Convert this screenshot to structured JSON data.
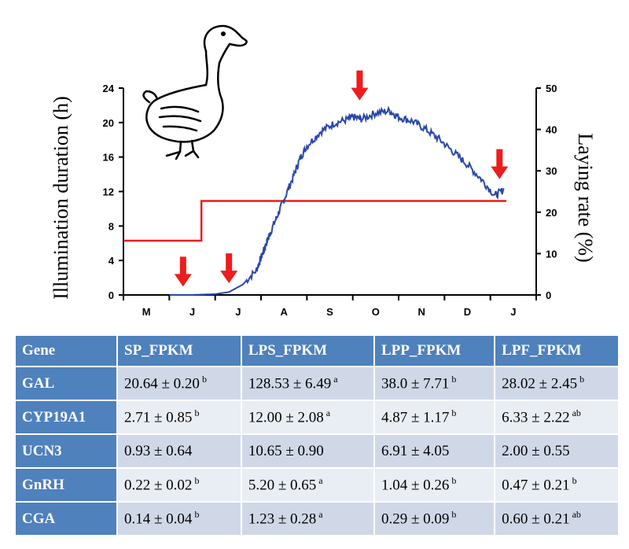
{
  "chart_data": {
    "type": "line",
    "ylabel": "Illumination duration (h)",
    "y2label": "Laying rate (%)",
    "categories": [
      "M",
      "J",
      "J",
      "A",
      "S",
      "O",
      "N",
      "D",
      "J"
    ],
    "ylim": [
      0,
      24
    ],
    "y_ticks": [
      0,
      4,
      8,
      12,
      16,
      20,
      24
    ],
    "y2lim": [
      0,
      50
    ],
    "y2_ticks": [
      0,
      10,
      20,
      30,
      40,
      50
    ],
    "colors": {
      "illumination": "#ee1c1c",
      "laying": "#2a47a8",
      "arrow": "#ee1c1c"
    },
    "series": [
      {
        "axis": "left",
        "step": true,
        "x": [
          0,
          1.7,
          1.7,
          8.35
        ],
        "values": [
          6.3,
          6.3,
          10.9,
          10.9
        ]
      },
      {
        "axis": "right",
        "x": [
          1,
          1.5,
          2,
          2.3,
          2.6,
          2.9,
          3,
          3.1,
          3.2,
          3.35,
          3.5,
          3.7,
          3.85,
          4,
          4.3,
          4.6,
          4.9,
          5,
          5.2,
          5.5,
          5.8,
          6,
          6.3,
          6.6,
          6.9,
          7.2,
          7.5,
          7.8,
          8.1,
          8.3
        ],
        "values": [
          0,
          0,
          0.2,
          0.7,
          2.5,
          6,
          9,
          12,
          15,
          19,
          23,
          28.5,
          33,
          36,
          39.5,
          41.5,
          42.5,
          43,
          42.5,
          44,
          44.5,
          43,
          42,
          40,
          37.5,
          34.5,
          31.5,
          28,
          24,
          25.5
        ]
      }
    ],
    "arrows_x": [
      1.3,
      2.3,
      5.15,
      8.2
    ],
    "arrows_y2": [
      0.5,
      1.3,
      45.5,
      26.5
    ]
  },
  "table": {
    "headers": [
      "Gene",
      "SP_FPKM",
      "LPS_FPKM",
      "LPP_FPKM",
      "LPF_FPKM"
    ],
    "rows": [
      {
        "gene": "GAL",
        "cells": [
          {
            "v": "20.64 ± 0.20",
            "s": "b"
          },
          {
            "v": "128.53 ± 6.49",
            "s": "a"
          },
          {
            "v": "38.0 ± 7.71",
            "s": "b"
          },
          {
            "v": "28.02 ± 2.45",
            "s": "b"
          }
        ]
      },
      {
        "gene": "CYP19A1",
        "cells": [
          {
            "v": "2.71 ± 0.85",
            "s": "b"
          },
          {
            "v": "12.00 ± 2.08",
            "s": "a"
          },
          {
            "v": "4.87 ± 1.17",
            "s": "b"
          },
          {
            "v": "6.33 ± 2.22",
            "s": "ab"
          }
        ]
      },
      {
        "gene": "UCN3",
        "cells": [
          {
            "v": "0.93 ± 0.64",
            "s": ""
          },
          {
            "v": "10.65 ± 0.90",
            "s": ""
          },
          {
            "v": "6.91 ± 4.05",
            "s": ""
          },
          {
            "v": "2.00 ± 0.55",
            "s": ""
          }
        ]
      },
      {
        "gene": "GnRH",
        "cells": [
          {
            "v": "0.22 ± 0.02",
            "s": "b"
          },
          {
            "v": "5.20 ± 0.65",
            "s": "a"
          },
          {
            "v": "1.04 ± 0.26",
            "s": "b"
          },
          {
            "v": "0.47 ± 0.21",
            "s": "b"
          }
        ]
      },
      {
        "gene": "CGA",
        "cells": [
          {
            "v": "0.14 ± 0.04",
            "s": "b"
          },
          {
            "v": "1.23 ± 0.28",
            "s": "a"
          },
          {
            "v": "0.29 ± 0.09",
            "s": "b"
          },
          {
            "v": "0.60 ± 0.21",
            "s": "ab"
          }
        ]
      }
    ]
  }
}
